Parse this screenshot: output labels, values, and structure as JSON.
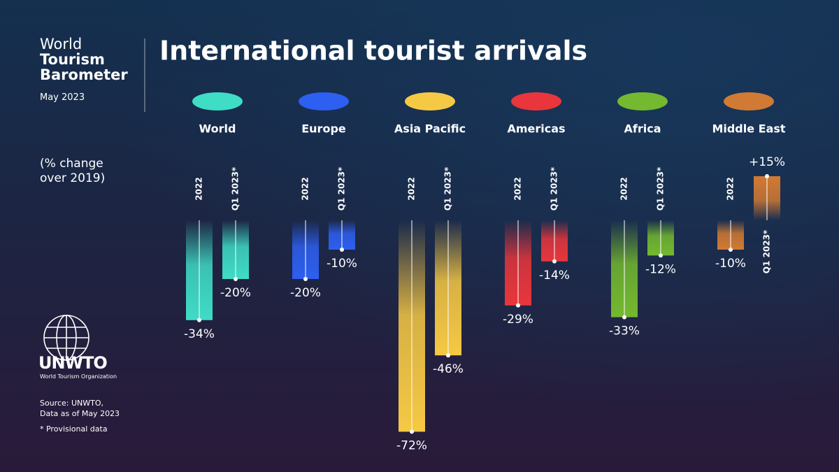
{
  "header": {
    "brand_line1": "World",
    "brand_line2": "Tourism",
    "brand_line3": "Barometer",
    "date": "May 2023",
    "unit_note": "(% change over 2019)"
  },
  "footer": {
    "org_name": "UNWTO",
    "org_full": "World Tourism Organization",
    "source": "Source: UNWTO, Data as of May 2023",
    "footnote": "* Provisional data"
  },
  "chart_data": {
    "type": "bar",
    "title": "International tourist arrivals",
    "categories": [
      "World",
      "Europe",
      "Asia Pacific",
      "Americas",
      "Africa",
      "Middle East"
    ],
    "category_colors": [
      "#3fdcc6",
      "#2d5ff0",
      "#f6c944",
      "#e8363c",
      "#74b92f",
      "#d17a33"
    ],
    "series": [
      {
        "name": "2022",
        "values": [
          -34,
          -20,
          -72,
          -29,
          -33,
          -10
        ],
        "value_labels": [
          "-34%",
          "-20%",
          "-72%",
          "-29%",
          "-33%",
          "-10%"
        ]
      },
      {
        "name": "Q1 2023*",
        "values": [
          -20,
          -10,
          -46,
          -14,
          -12,
          15
        ],
        "value_labels": [
          "-20%",
          "-10%",
          "-46%",
          "-14%",
          "-12%",
          "+15%"
        ]
      }
    ]
  }
}
